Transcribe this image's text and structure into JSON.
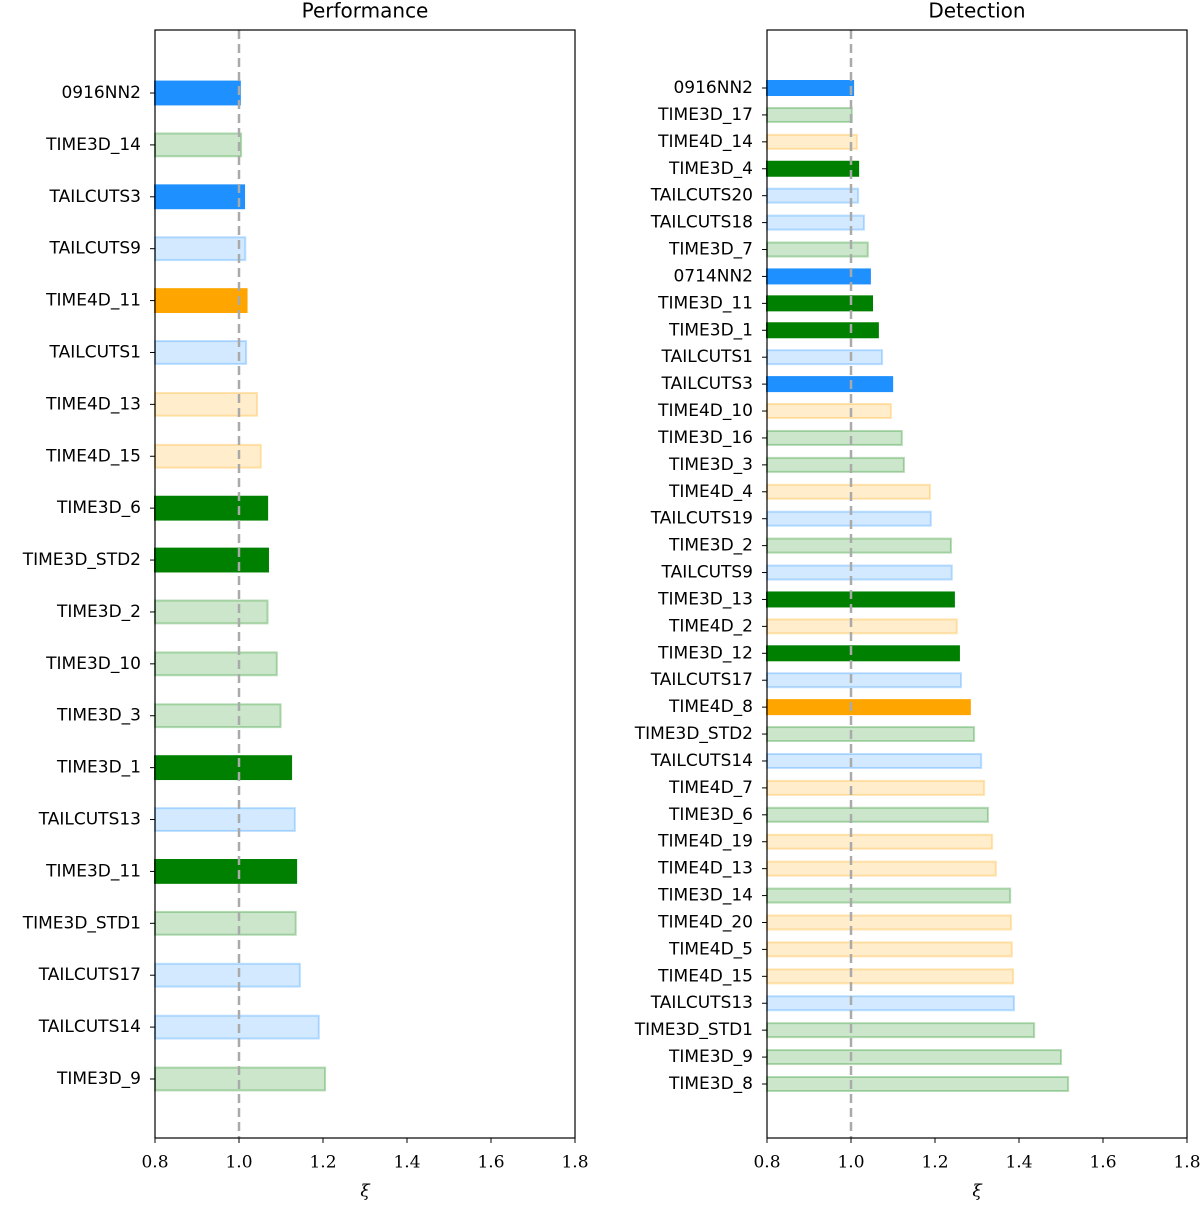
{
  "chart_data": [
    {
      "type": "barh",
      "title": "Performance",
      "xlabel": "ξ",
      "categories": [
        "0916NN2",
        "TIME3D_14",
        "TAILCUTS3",
        "TAILCUTS9",
        "TIME4D_11",
        "TAILCUTS1",
        "TIME4D_13",
        "TIME4D_15",
        "TIME3D_6",
        "TIME3D_STD2",
        "TIME3D_2",
        "TIME3D_10",
        "TIME3D_3",
        "TIME3D_1",
        "TAILCUTS13",
        "TIME3D_11",
        "TIME3D_STD1",
        "TAILCUTS17",
        "TAILCUTS14",
        "TIME3D_9"
      ],
      "values": [
        1.002,
        1.005,
        1.012,
        1.015,
        1.018,
        1.017,
        1.043,
        1.052,
        1.067,
        1.069,
        1.068,
        1.09,
        1.099,
        1.124,
        1.133,
        1.136,
        1.135,
        1.145,
        1.19,
        1.205
      ],
      "colors": [
        "#1e90ff",
        "#008000",
        "#1e90ff",
        "#1e90ff",
        "#ffa500",
        "#1e90ff",
        "#ffa500",
        "#ffa500",
        "#008000",
        "#008000",
        "#008000",
        "#008000",
        "#008000",
        "#008000",
        "#1e90ff",
        "#008000",
        "#008000",
        "#1e90ff",
        "#1e90ff",
        "#008000"
      ],
      "alphas": [
        1,
        0.2,
        1,
        0.2,
        1,
        0.2,
        0.2,
        0.2,
        1,
        1,
        0.2,
        0.2,
        0.2,
        1,
        0.2,
        1,
        0.2,
        0.2,
        0.2,
        0.2
      ],
      "reference_line": 1.0,
      "xlim": [
        0.8,
        1.8
      ],
      "xticks": [
        {
          "value": 0.8,
          "label": "0.8"
        },
        {
          "value": 1.0,
          "label": "1.0"
        },
        {
          "value": 1.2,
          "label": "1.2"
        },
        {
          "value": 1.4,
          "label": "1.4"
        },
        {
          "value": 1.6,
          "label": "1.6"
        },
        {
          "value": 1.8,
          "label": "1.8"
        }
      ]
    },
    {
      "type": "barh",
      "title": "Detection",
      "xlabel": "ξ",
      "categories": [
        "0916NN2",
        "TIME3D_17",
        "TIME4D_14",
        "TIME3D_4",
        "TAILCUTS20",
        "TAILCUTS18",
        "TIME3D_7",
        "0714NN2",
        "TIME3D_11",
        "TIME3D_1",
        "TAILCUTS1",
        "TAILCUTS3",
        "TIME4D_10",
        "TIME3D_16",
        "TIME3D_3",
        "TIME4D_4",
        "TAILCUTS19",
        "TIME3D_2",
        "TAILCUTS9",
        "TIME3D_13",
        "TIME4D_2",
        "TIME3D_12",
        "TAILCUTS17",
        "TIME4D_8",
        "TIME3D_STD2",
        "TAILCUTS14",
        "TIME4D_7",
        "TIME3D_6",
        "TIME4D_19",
        "TIME4D_13",
        "TIME3D_14",
        "TIME4D_20",
        "TIME4D_5",
        "TIME4D_15",
        "TAILCUTS13",
        "TIME3D_STD1",
        "TIME3D_9",
        "TIME3D_8"
      ],
      "values": [
        1.005,
        1.002,
        1.014,
        1.017,
        1.017,
        1.031,
        1.04,
        1.045,
        1.05,
        1.064,
        1.074,
        1.098,
        1.095,
        1.121,
        1.126,
        1.188,
        1.19,
        1.238,
        1.24,
        1.245,
        1.252,
        1.257,
        1.262,
        1.283,
        1.293,
        1.31,
        1.317,
        1.326,
        1.336,
        1.345,
        1.379,
        1.381,
        1.383,
        1.386,
        1.388,
        1.436,
        1.5,
        1.517
      ],
      "colors": [
        "#1e90ff",
        "#008000",
        "#ffa500",
        "#008000",
        "#1e90ff",
        "#1e90ff",
        "#008000",
        "#1e90ff",
        "#008000",
        "#008000",
        "#1e90ff",
        "#1e90ff",
        "#ffa500",
        "#008000",
        "#008000",
        "#ffa500",
        "#1e90ff",
        "#008000",
        "#1e90ff",
        "#008000",
        "#ffa500",
        "#008000",
        "#1e90ff",
        "#ffa500",
        "#008000",
        "#1e90ff",
        "#ffa500",
        "#008000",
        "#ffa500",
        "#ffa500",
        "#008000",
        "#ffa500",
        "#ffa500",
        "#ffa500",
        "#1e90ff",
        "#008000",
        "#008000",
        "#008000"
      ],
      "alphas": [
        1,
        0.2,
        0.2,
        1,
        0.2,
        0.2,
        0.2,
        1,
        1,
        1,
        0.2,
        1,
        0.2,
        0.2,
        0.2,
        0.2,
        0.2,
        0.2,
        0.2,
        1,
        0.2,
        1,
        0.2,
        1,
        0.2,
        0.2,
        0.2,
        0.2,
        0.2,
        0.2,
        0.2,
        0.2,
        0.2,
        0.2,
        0.2,
        0.2,
        0.2,
        0.2
      ],
      "reference_line": 1.0,
      "xlim": [
        0.8,
        1.8
      ],
      "xticks": [
        {
          "value": 0.8,
          "label": "0.8"
        },
        {
          "value": 1.0,
          "label": "1.0"
        },
        {
          "value": 1.2,
          "label": "1.2"
        },
        {
          "value": 1.4,
          "label": "1.4"
        },
        {
          "value": 1.6,
          "label": "1.6"
        },
        {
          "value": 1.8,
          "label": "1.8"
        }
      ]
    }
  ]
}
